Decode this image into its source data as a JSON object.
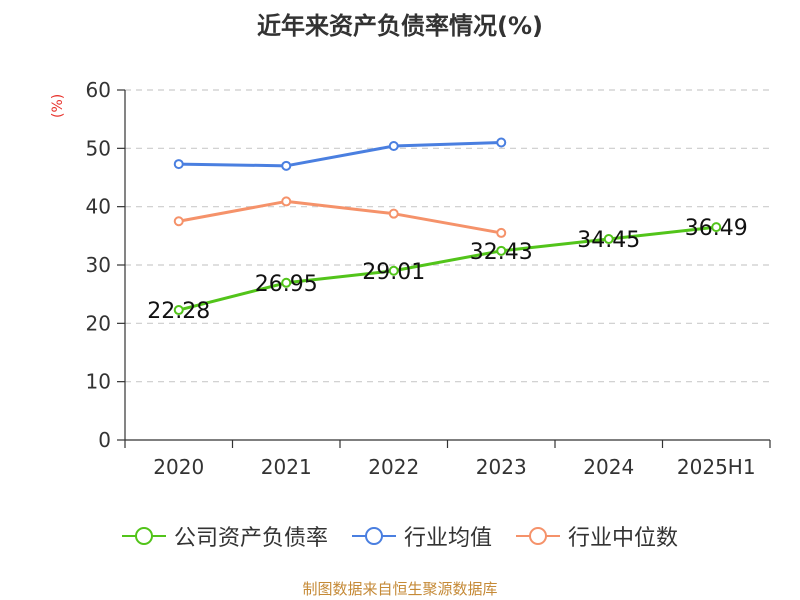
{
  "chart_data": {
    "type": "line",
    "title": "近年来资产负债率情况(%)",
    "ylabel": "(%)",
    "x": [
      "2020",
      "2021",
      "2022",
      "2023",
      "2024",
      "2025H1"
    ],
    "ylim": [
      0,
      60
    ],
    "yticks": [
      0,
      10,
      20,
      30,
      40,
      50,
      60
    ],
    "grid": true,
    "legend_position": "bottom",
    "series": [
      {
        "name": "公司资产负债率",
        "color": "#52c41a",
        "values": [
          22.28,
          26.95,
          29.01,
          32.43,
          34.45,
          36.49
        ],
        "labels": [
          "22.28",
          "26.95",
          "29.01",
          "32.43",
          "34.45",
          "36.49"
        ]
      },
      {
        "name": "行业均值",
        "color": "#4a7fe0",
        "values": [
          47.3,
          47.0,
          50.4,
          51.0,
          null,
          null
        ]
      },
      {
        "name": "行业中位数",
        "color": "#f5926a",
        "values": [
          37.5,
          40.9,
          38.8,
          35.5,
          null,
          null
        ]
      }
    ]
  },
  "source": "制图数据来自恒生聚源数据库"
}
